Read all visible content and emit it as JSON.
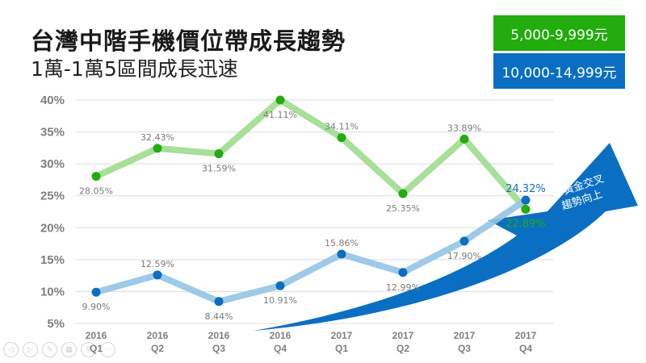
{
  "header": {
    "title": "台灣中階手機價位帶成長趨勢",
    "subtitle": "1萬-1萬5區間成長迅速"
  },
  "legend": {
    "green_label": "5,000-9,999元",
    "blue_label": "10,000-14,999元"
  },
  "annotation": {
    "line1": "黃金交叉",
    "line2": "趨勢向上"
  },
  "colors": {
    "green_marker": "#22ac0e",
    "green_line": "#9fdc8e",
    "blue_marker": "#0a6fc2",
    "blue_line": "#95c4e4",
    "arrow": "#0a6fc2",
    "grid": "#e3e3e3",
    "axis_text": "#7f7f7f"
  },
  "nav_icons": [
    "prev-icon",
    "next-icon",
    "pen-icon",
    "slides-icon",
    "zoom-icon",
    "more-icon"
  ],
  "chart_data": {
    "type": "line",
    "title": "台灣中階手機價位帶成長趨勢",
    "subtitle": "1萬-1萬5區間成長迅速",
    "xlabel": "",
    "ylabel": "",
    "categories": [
      {
        "year": "2016",
        "q": "Q1"
      },
      {
        "year": "2016",
        "q": "Q2"
      },
      {
        "year": "2016",
        "q": "Q3"
      },
      {
        "year": "2016",
        "q": "Q4"
      },
      {
        "year": "2017",
        "q": "Q1"
      },
      {
        "year": "2017",
        "q": "Q2"
      },
      {
        "year": "2017",
        "q": "Q3"
      },
      {
        "year": "2017",
        "q": "Q4"
      }
    ],
    "yticks": [
      "40%",
      "35%",
      "30%",
      "25%",
      "20%",
      "15%",
      "10%",
      "5%"
    ],
    "ylim": [
      5,
      40
    ],
    "grid": true,
    "legend_position": "top-right",
    "series": [
      {
        "name": "5,000-9,999元",
        "values": [
          28.05,
          32.43,
          31.59,
          41.11,
          34.11,
          25.35,
          33.89,
          22.89
        ],
        "labels": [
          "28.05%",
          "32.43%",
          "31.59%",
          "41.11%",
          "34.11%",
          "25.35%",
          "33.89%",
          "22.89%"
        ],
        "label_pos": [
          "below",
          "above",
          "below",
          "below",
          "above",
          "below",
          "above",
          "below"
        ]
      },
      {
        "name": "10,000-14,999元",
        "values": [
          9.9,
          12.59,
          8.44,
          10.91,
          15.86,
          12.99,
          17.9,
          24.32
        ],
        "labels": [
          "9.90%",
          "12.59%",
          "8.44%",
          "10.91%",
          "15.86%",
          "12.99%",
          "17.90%",
          "24.32%"
        ],
        "label_pos": [
          "below",
          "above",
          "below",
          "below",
          "above",
          "below",
          "below",
          "above"
        ]
      }
    ],
    "annotations": [
      "黃金交叉",
      "趨勢向上"
    ]
  }
}
